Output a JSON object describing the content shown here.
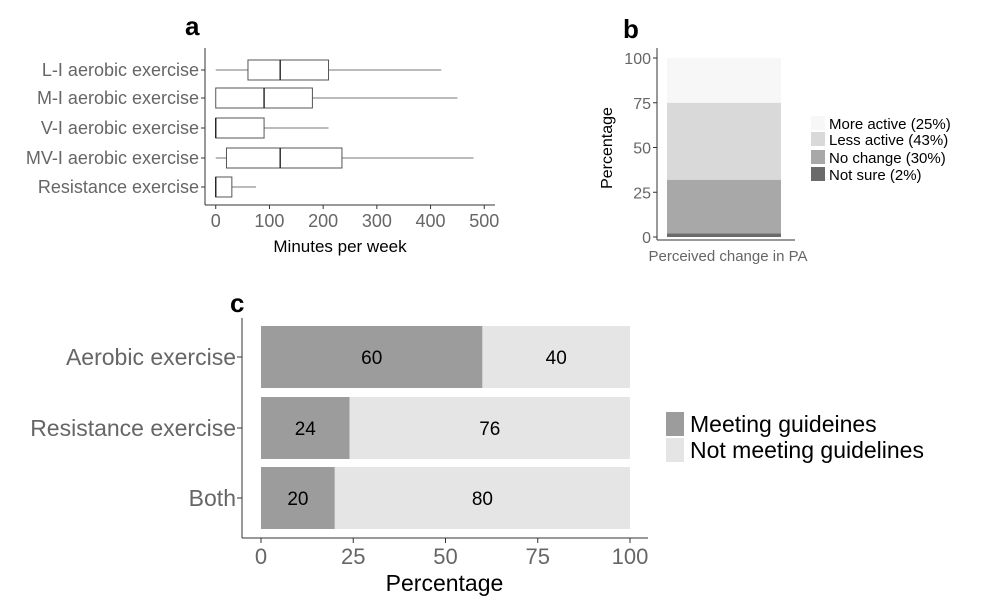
{
  "panels": {
    "a": {
      "label": "a"
    },
    "b": {
      "label": "b"
    },
    "c": {
      "label": "c"
    }
  },
  "chart_data": [
    {
      "panel": "a",
      "type": "box",
      "categories": [
        "L-I aerobic exercise",
        "M-I aerobic exercise",
        "V-I aerobic exercise",
        "MV-I aerobic exercise",
        "Resistance exercise"
      ],
      "boxes": [
        {
          "whisker_low": 0,
          "q1": 60,
          "median": 120,
          "q3": 210,
          "whisker_high": 420
        },
        {
          "whisker_low": 0,
          "q1": 0,
          "median": 90,
          "q3": 180,
          "whisker_high": 450
        },
        {
          "whisker_low": 0,
          "q1": 0,
          "median": 0,
          "q3": 90,
          "whisker_high": 210
        },
        {
          "whisker_low": 0,
          "q1": 20,
          "median": 120,
          "q3": 235,
          "whisker_high": 480
        },
        {
          "whisker_low": 0,
          "q1": 0,
          "median": 0,
          "q3": 30,
          "whisker_high": 75
        }
      ],
      "xlabel": "Minutes per week",
      "xlim": [
        -20,
        520
      ],
      "xticks": [
        0,
        100,
        200,
        300,
        400,
        500
      ]
    },
    {
      "panel": "b",
      "type": "stacked-bar",
      "categories": [
        ""
      ],
      "series": [
        {
          "name": "More active (25%)",
          "value": 25,
          "color": "#f7f7f7"
        },
        {
          "name": "Less active (43%)",
          "value": 43,
          "color": "#d9d9d9"
        },
        {
          "name": "No change (30%)",
          "value": 30,
          "color": "#a8a8a8"
        },
        {
          "name": "Not sure (2%)",
          "value": 2,
          "color": "#6b6b6b"
        }
      ],
      "xlabel": "Perceived change in PA",
      "ylabel": "Percentage",
      "ylim": [
        0,
        100
      ],
      "yticks": [
        0,
        25,
        50,
        75,
        100
      ]
    },
    {
      "panel": "c",
      "type": "stacked-bar-horizontal",
      "categories": [
        "Aerobic exercise",
        "Resistance exercise",
        "Both"
      ],
      "series": [
        {
          "name": "Meeting guideines",
          "values": [
            60,
            24,
            20
          ],
          "color": "#9c9c9c"
        },
        {
          "name": "Not meeting guidelines",
          "values": [
            40,
            76,
            80
          ],
          "color": "#e5e5e5"
        }
      ],
      "xlabel": "Percentage",
      "xlim": [
        0,
        100
      ],
      "xticks": [
        0,
        25,
        50,
        75,
        100
      ]
    }
  ]
}
